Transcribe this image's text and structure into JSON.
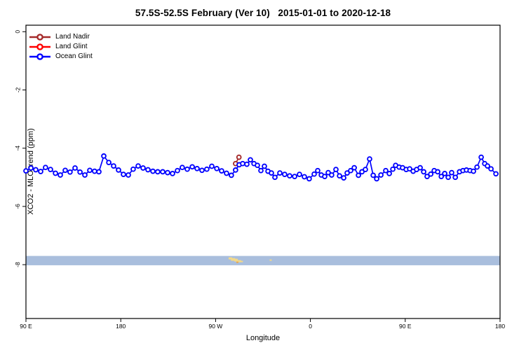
{
  "title": "57.5S-52.5S February (Ver 10)   2015-01-01 to 2020-12-18",
  "legend": {
    "items": [
      {
        "label": "Land Nadir",
        "color": "#A52A2A"
      },
      {
        "label": "Land Glint",
        "color": "#FF0000"
      },
      {
        "label": "Ocean Glint",
        "color": "#0000FF"
      }
    ]
  },
  "axes": {
    "x_label": "Longitude",
    "y_label": "XCO2 - MLO trend (ppm)",
    "x_ticks": [
      {
        "pos": 90,
        "label": "90 E"
      },
      {
        "pos": 180,
        "label": "180"
      },
      {
        "pos": 270,
        "label": "90 W"
      },
      {
        "pos": 360,
        "label": "0"
      },
      {
        "pos": 450,
        "label": "90 E"
      },
      {
        "pos": 540,
        "label": "180"
      }
    ],
    "y_ticks": [
      {
        "pos": 0,
        "label": "0"
      },
      {
        "pos": -2,
        "label": "-2"
      },
      {
        "pos": -4,
        "label": "-4"
      },
      {
        "pos": -6,
        "label": "-6"
      },
      {
        "pos": -8,
        "label": "-8"
      }
    ]
  },
  "chart_data": {
    "type": "line",
    "title": "57.5S-52.5S February (Ver 10)   2015-01-01 to 2020-12-18",
    "xlabel": "Longitude",
    "ylabel": "XCO2 - MLO trend (ppm)",
    "x_axis_note": "x axis wraps eastward: 90E -> 180 -> 90W -> 0 -> 90E -> 180, stored as display degrees 90..540",
    "xlim": [
      90,
      540
    ],
    "ylim": [
      -9.9,
      0.2
    ],
    "grid": false,
    "legend_position": "top-left inside",
    "marker": "open-circle",
    "series": [
      {
        "name": "Land Nadir",
        "color": "#A52A2A",
        "points": [
          [
            289.0,
            -4.53
          ],
          [
            292.2,
            -4.31
          ]
        ]
      },
      {
        "name": "Land Glint",
        "color": "#FF0000",
        "points": []
      },
      {
        "name": "Ocean Glint",
        "color": "#0000FF",
        "points": [
          [
            90.0,
            -4.78
          ],
          [
            94.7,
            -4.68
          ],
          [
            99.3,
            -4.74
          ],
          [
            104.0,
            -4.8
          ],
          [
            108.6,
            -4.66
          ],
          [
            113.3,
            -4.73
          ],
          [
            118.0,
            -4.86
          ],
          [
            122.6,
            -4.92
          ],
          [
            127.3,
            -4.76
          ],
          [
            131.9,
            -4.82
          ],
          [
            136.6,
            -4.68
          ],
          [
            141.3,
            -4.82
          ],
          [
            145.9,
            -4.92
          ],
          [
            150.6,
            -4.76
          ],
          [
            155.2,
            -4.79
          ],
          [
            159.2,
            -4.81
          ],
          [
            163.9,
            -4.27
          ],
          [
            168.6,
            -4.49
          ],
          [
            173.2,
            -4.61
          ],
          [
            177.9,
            -4.75
          ],
          [
            182.5,
            -4.9
          ],
          [
            187.2,
            -4.92
          ],
          [
            191.8,
            -4.72
          ],
          [
            196.5,
            -4.61
          ],
          [
            201.2,
            -4.68
          ],
          [
            205.8,
            -4.74
          ],
          [
            210.5,
            -4.79
          ],
          [
            215.1,
            -4.81
          ],
          [
            219.8,
            -4.81
          ],
          [
            224.5,
            -4.84
          ],
          [
            229.1,
            -4.87
          ],
          [
            233.8,
            -4.77
          ],
          [
            238.4,
            -4.66
          ],
          [
            243.1,
            -4.72
          ],
          [
            247.8,
            -4.64
          ],
          [
            252.4,
            -4.7
          ],
          [
            257.1,
            -4.76
          ],
          [
            261.7,
            -4.72
          ],
          [
            266.4,
            -4.62
          ],
          [
            271.1,
            -4.7
          ],
          [
            275.7,
            -4.78
          ],
          [
            280.4,
            -4.86
          ],
          [
            285.0,
            -4.93
          ],
          [
            289.0,
            -4.75
          ],
          [
            292.4,
            -4.57
          ],
          [
            295.7,
            -4.53
          ],
          [
            299.7,
            -4.55
          ],
          [
            303.0,
            -4.4
          ],
          [
            306.4,
            -4.53
          ],
          [
            309.7,
            -4.59
          ],
          [
            313.0,
            -4.77
          ],
          [
            316.3,
            -4.62
          ],
          [
            319.7,
            -4.79
          ],
          [
            323.0,
            -4.85
          ],
          [
            326.3,
            -5.0
          ],
          [
            331.0,
            -4.85
          ],
          [
            335.6,
            -4.9
          ],
          [
            340.3,
            -4.95
          ],
          [
            345.0,
            -4.97
          ],
          [
            349.6,
            -4.9
          ],
          [
            354.3,
            -4.98
          ],
          [
            358.9,
            -5.05
          ],
          [
            363.6,
            -4.89
          ],
          [
            366.9,
            -4.77
          ],
          [
            370.3,
            -4.92
          ],
          [
            373.6,
            -4.97
          ],
          [
            376.9,
            -4.84
          ],
          [
            380.2,
            -4.92
          ],
          [
            384.2,
            -4.73
          ],
          [
            387.6,
            -4.95
          ],
          [
            391.6,
            -5.02
          ],
          [
            394.9,
            -4.85
          ],
          [
            398.2,
            -4.77
          ],
          [
            401.6,
            -4.67
          ],
          [
            405.6,
            -4.93
          ],
          [
            408.9,
            -4.81
          ],
          [
            412.2,
            -4.73
          ],
          [
            416.2,
            -4.37
          ],
          [
            419.6,
            -4.93
          ],
          [
            422.9,
            -5.05
          ],
          [
            426.9,
            -4.92
          ],
          [
            431.5,
            -4.77
          ],
          [
            434.9,
            -4.87
          ],
          [
            438.2,
            -4.72
          ],
          [
            440.9,
            -4.59
          ],
          [
            444.2,
            -4.65
          ],
          [
            447.5,
            -4.67
          ],
          [
            450.9,
            -4.73
          ],
          [
            454.2,
            -4.71
          ],
          [
            457.5,
            -4.79
          ],
          [
            460.8,
            -4.73
          ],
          [
            464.2,
            -4.67
          ],
          [
            467.5,
            -4.81
          ],
          [
            470.8,
            -4.97
          ],
          [
            474.2,
            -4.89
          ],
          [
            477.5,
            -4.77
          ],
          [
            480.8,
            -4.81
          ],
          [
            484.2,
            -4.97
          ],
          [
            487.5,
            -4.87
          ],
          [
            490.8,
            -5.0
          ],
          [
            494.1,
            -4.84
          ],
          [
            497.5,
            -5.0
          ],
          [
            501.5,
            -4.81
          ],
          [
            504.8,
            -4.77
          ],
          [
            508.1,
            -4.75
          ],
          [
            511.5,
            -4.77
          ],
          [
            514.8,
            -4.79
          ],
          [
            518.1,
            -4.65
          ],
          [
            522.1,
            -4.31
          ],
          [
            525.4,
            -4.53
          ],
          [
            528.1,
            -4.61
          ],
          [
            531.4,
            -4.71
          ],
          [
            536.1,
            -4.88
          ]
        ]
      }
    ]
  },
  "map_strip": {
    "description": "pale blue latitude-band map strip (mostly ocean) with small yellow land specks near Patagonia (~70W) and South Georgia (~37W)",
    "ocean_color": "#a9bedd",
    "top_value": -7.7,
    "bottom_value": -8.02,
    "land_color": "#f2d98a",
    "land_marks": [
      {
        "lon": 284.0,
        "dy": 2,
        "w": 5,
        "h": 3
      },
      {
        "lon": 286.6,
        "dy": 3,
        "w": 6,
        "h": 4
      },
      {
        "lon": 289.4,
        "dy": 4,
        "w": 5,
        "h": 4
      },
      {
        "lon": 291.9,
        "dy": 6,
        "w": 7,
        "h": 3
      },
      {
        "lon": 294.6,
        "dy": 7,
        "w": 4,
        "h": 2
      },
      {
        "lon": 290.7,
        "dy": 8,
        "w": 3,
        "h": 2,
        "color": "#e8a84e"
      },
      {
        "lon": 322.3,
        "dy": 5,
        "w": 3,
        "h": 2
      }
    ]
  }
}
